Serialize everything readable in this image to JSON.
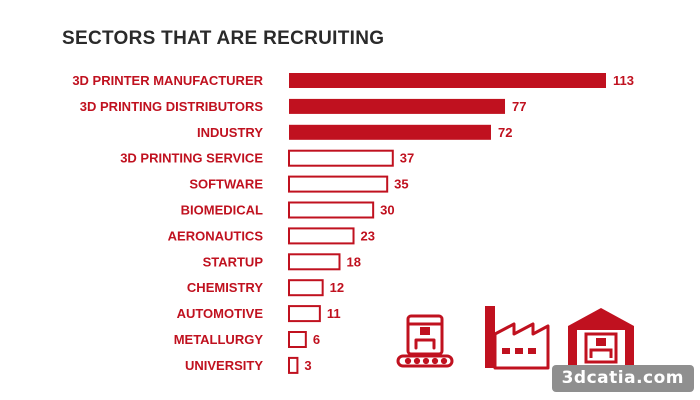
{
  "chart_data": {
    "type": "bar",
    "orientation": "horizontal",
    "title": "SECTORS THAT ARE RECRUITING",
    "categories": [
      "3D PRINTER MANUFACTURER",
      "3D PRINTING DISTRIBUTORS",
      "INDUSTRY",
      "3D PRINTING SERVICE",
      "SOFTWARE",
      "BIOMEDICAL",
      "AERONAUTICS",
      "STARTUP",
      "CHEMISTRY",
      "AUTOMOTIVE",
      "METALLURGY",
      "UNIVERSITY"
    ],
    "values": [
      113,
      77,
      72,
      37,
      35,
      30,
      23,
      18,
      12,
      11,
      6,
      3
    ],
    "highlighted_top_n": 3,
    "grid": false,
    "legend": "none"
  },
  "colors": {
    "accent": "#c0111f",
    "title": "#2a2a2a",
    "watermark_bg": "#8f8f8f"
  },
  "icons": [
    "3d-printer-icon",
    "factory-icon",
    "warehouse-printer-icon"
  ],
  "watermark": {
    "text": "3dcatia.com"
  }
}
